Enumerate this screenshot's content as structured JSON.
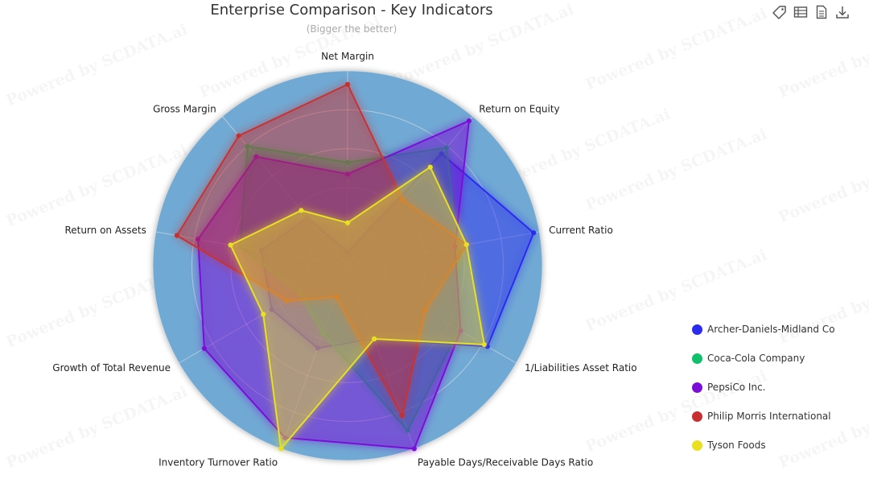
{
  "title": "Enterprise Comparison - Key Indicators",
  "subtitle": "(Bigger the better)",
  "watermark": "Powered by SCDATA.ai",
  "toolbar": {
    "icons": [
      "tag-icon",
      "data-view-icon",
      "document-icon",
      "download-icon"
    ]
  },
  "colors": {
    "radar_background": "#6fa9d3",
    "grid": "#e8e8e8"
  },
  "chart_data": {
    "type": "radar",
    "title": "Enterprise Comparison - Key Indicators",
    "subtitle": "(Bigger the better)",
    "indicators": [
      "Net Margin",
      "Return on Equity",
      "Current Ratio",
      "1/Liabilities Asset Ratio",
      "Payable Days/Receivable Days Ratio",
      "Inventory Turnover Ratio",
      "Growth of Total Revenue",
      "Return on Assets",
      "Gross Margin"
    ],
    "max": 100,
    "legend_position": "right",
    "series": [
      {
        "name": "Archer-Daniels-Midland Co",
        "color": "#2b2bf0",
        "values": [
          7,
          75,
          97,
          83,
          40,
          45,
          45,
          45,
          32
        ]
      },
      {
        "name": "Coca-Cola Company",
        "color": "#10c06b",
        "values": [
          53,
          79,
          57,
          66,
          90,
          37,
          28,
          56,
          80
        ]
      },
      {
        "name": "PepsiCo Inc.",
        "color": "#7a10d8",
        "values": [
          47,
          97,
          56,
          67,
          100,
          94,
          85,
          78,
          73
        ]
      },
      {
        "name": "Philip Morris International",
        "color": "#c83030",
        "values": [
          93,
          44,
          62,
          46,
          82,
          17,
          36,
          89,
          87
        ]
      },
      {
        "name": "Tyson Foods",
        "color": "#e8e020",
        "values": [
          22,
          66,
          62,
          81,
          40,
          100,
          50,
          61,
          37
        ]
      }
    ]
  }
}
